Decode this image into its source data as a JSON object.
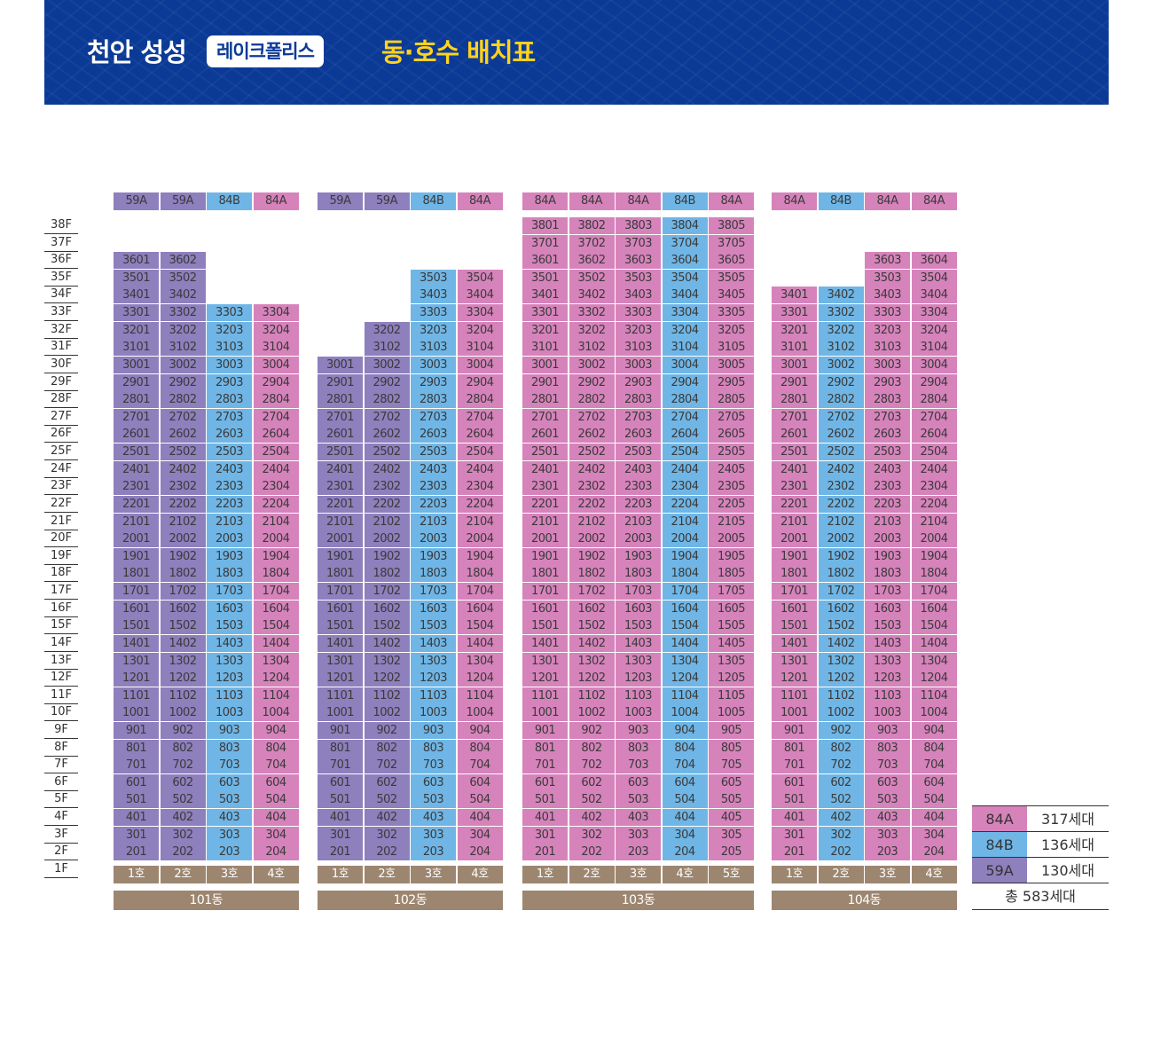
{
  "header": {
    "title_prefix": "천안 성성",
    "brand": "레이크폴리스",
    "title_suffix": "동·호수 배치표"
  },
  "colors": {
    "banner": "#0b3a96",
    "title_accent": "#ffd21c",
    "type_59A": "#8e7fbd",
    "type_84A": "#d683bb",
    "type_84B": "#6fb6e6",
    "footer": "#9d8670"
  },
  "floors": [
    "38F",
    "37F",
    "36F",
    "35F",
    "34F",
    "33F",
    "32F",
    "31F",
    "30F",
    "29F",
    "28F",
    "27F",
    "26F",
    "25F",
    "24F",
    "23F",
    "22F",
    "21F",
    "20F",
    "19F",
    "18F",
    "17F",
    "16F",
    "15F",
    "14F",
    "13F",
    "12F",
    "11F",
    "10F",
    "9F",
    "8F",
    "7F",
    "6F",
    "5F",
    "4F",
    "3F",
    "2F",
    "1F"
  ],
  "buildings": [
    {
      "dong": "101동",
      "lines": [
        {
          "type": "59A",
          "ho": "1호",
          "top_floor": 36
        },
        {
          "type": "59A",
          "ho": "2호",
          "top_floor": 36
        },
        {
          "type": "84B",
          "ho": "3호",
          "top_floor": 33
        },
        {
          "type": "84A",
          "ho": "4호",
          "top_floor": 33
        }
      ]
    },
    {
      "dong": "102동",
      "lines": [
        {
          "type": "59A",
          "ho": "1호",
          "top_floor": 30
        },
        {
          "type": "59A",
          "ho": "2호",
          "top_floor": 32
        },
        {
          "type": "84B",
          "ho": "3호",
          "top_floor": 35
        },
        {
          "type": "84A",
          "ho": "4호",
          "top_floor": 35
        }
      ]
    },
    {
      "dong": "103동",
      "lines": [
        {
          "type": "84A",
          "ho": "1호",
          "top_floor": 38
        },
        {
          "type": "84A",
          "ho": "2호",
          "top_floor": 38
        },
        {
          "type": "84A",
          "ho": "3호",
          "top_floor": 38
        },
        {
          "type": "84B",
          "ho": "4호",
          "top_floor": 38
        },
        {
          "type": "84A",
          "ho": "5호",
          "top_floor": 38
        }
      ]
    },
    {
      "dong": "104동",
      "lines": [
        {
          "type": "84A",
          "ho": "1호",
          "top_floor": 34
        },
        {
          "type": "84B",
          "ho": "2호",
          "top_floor": 34
        },
        {
          "type": "84A",
          "ho": "3호",
          "top_floor": 36
        },
        {
          "type": "84A",
          "ho": "4호",
          "top_floor": 36
        }
      ]
    }
  ],
  "legend": {
    "rows": [
      {
        "type": "84A",
        "count": "317세대"
      },
      {
        "type": "84B",
        "count": "136세대"
      },
      {
        "type": "59A",
        "count": "130세대"
      }
    ],
    "total": "총 583세대"
  }
}
